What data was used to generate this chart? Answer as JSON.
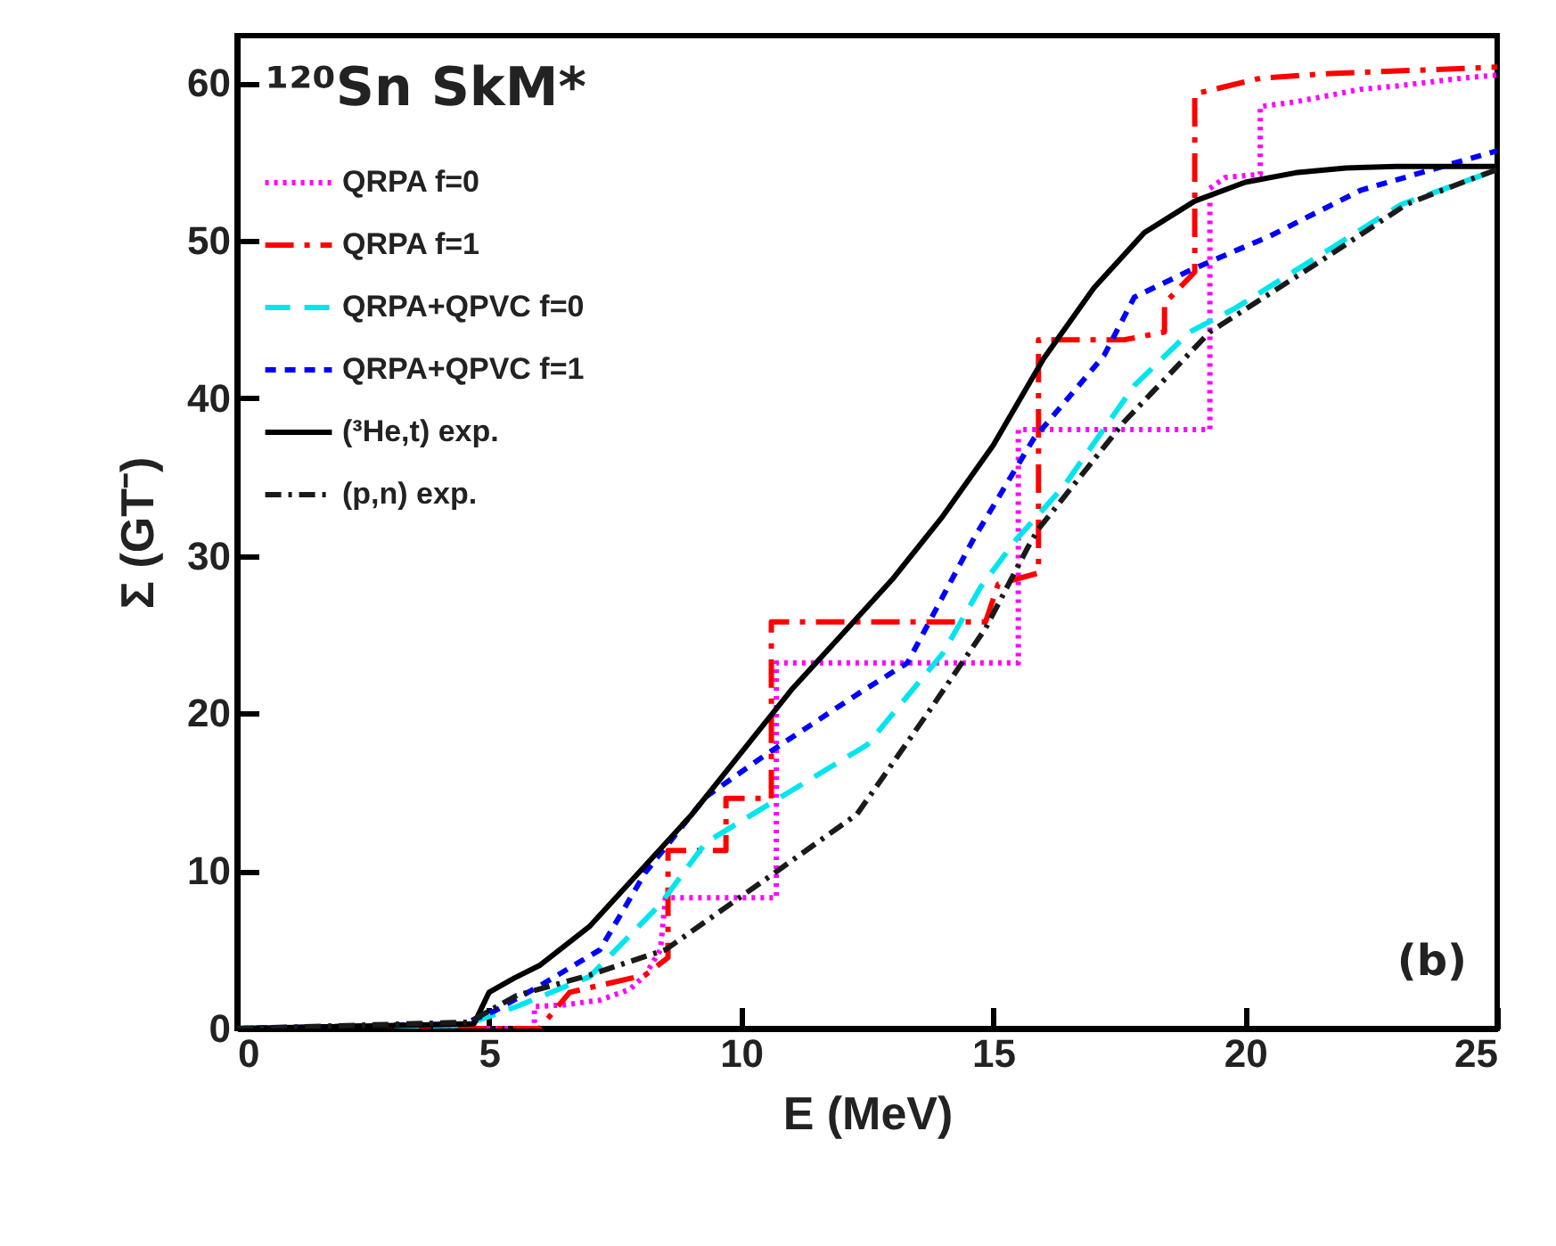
{
  "chart_data": {
    "type": "line",
    "xlabel": "E (MeV)",
    "ylabel": "Σ (GT⁻)",
    "xlim": [
      0,
      25
    ],
    "ylim": [
      0,
      63
    ],
    "xticks": [
      0,
      5,
      10,
      15,
      20,
      25
    ],
    "yticks": [
      0,
      10,
      20,
      30,
      40,
      50,
      60
    ],
    "grid": false,
    "legend": "top left",
    "marker": "none",
    "annotations": [
      "¹²⁰Sn SkM*",
      "(b)"
    ],
    "series": [
      {
        "name": "QRPA f=0",
        "color": "#ff00ff",
        "line_style": "dotted",
        "x": [
          0,
          5.9,
          5.9,
          6.5,
          7.2,
          7.8,
          8.1,
          8.4,
          8.5,
          10.7,
          10.7,
          15.5,
          15.5,
          19.3,
          19.3,
          19.6,
          20.3,
          20.3,
          21,
          22.3,
          23,
          24.3,
          25
        ],
        "values": [
          0,
          0,
          1.4,
          1.5,
          1.8,
          2.5,
          3.4,
          5,
          8.3,
          8.3,
          23.2,
          23.2,
          38,
          38,
          53.3,
          54,
          54.2,
          58.5,
          58.8,
          59.6,
          59.8,
          60.3,
          60.5
        ]
      },
      {
        "name": "QRPA f=1",
        "color": "#ff0000",
        "line_style": "dashdot",
        "x": [
          0,
          6.0,
          6.6,
          8.1,
          8.55,
          8.55,
          9.7,
          9.7,
          10.6,
          10.6,
          14.85,
          15.1,
          15.9,
          15.9,
          17.6,
          18.4,
          18.4,
          19.0,
          19.0,
          20.3,
          21.7,
          25
        ],
        "values": [
          0,
          0,
          2.3,
          3.4,
          4.5,
          11.3,
          11.3,
          14.6,
          14.6,
          25.8,
          25.8,
          28.2,
          28.9,
          43.7,
          43.7,
          44.2,
          46,
          48,
          59.3,
          60.3,
          60.6,
          61
        ]
      },
      {
        "name": "QRPA+QPVC f=0",
        "color": "#00e5ee",
        "line_style": "dashed",
        "x": [
          0,
          4.5,
          5.55,
          7.0,
          8.4,
          9.3,
          12.5,
          14.0,
          14.75,
          15.45,
          16.4,
          17.8,
          18.9,
          19.8,
          21.7,
          23.1,
          24.4,
          25
        ],
        "values": [
          0,
          0.2,
          1.4,
          3.3,
          7.9,
          11.8,
          18,
          23.8,
          28,
          31,
          34.4,
          40.8,
          44.2,
          45.7,
          49.5,
          52.3,
          53.8,
          54.5
        ]
      },
      {
        "name": "QRPA+QPVC f=1",
        "color": "#0000ff",
        "line_style": "shortdash",
        "x": [
          0,
          4.5,
          5.1,
          6,
          7.2,
          8.1,
          9.3,
          10.5,
          12.3,
          13.3,
          14.6,
          15.8,
          17.2,
          17.8,
          18.9,
          20.5,
          22.3,
          25
        ],
        "values": [
          0,
          0.3,
          1.1,
          2.7,
          5,
          9.9,
          14.7,
          17.4,
          21.2,
          23.2,
          31,
          37.4,
          42.7,
          46.4,
          48.1,
          50.3,
          53.2,
          55.7
        ]
      },
      {
        "name": "(³He,t) exp.",
        "color": "#000000",
        "line_style": "solid",
        "x": [
          0,
          4.7,
          5.0,
          5.5,
          6,
          7,
          8,
          9,
          10,
          11,
          12,
          13,
          14,
          15,
          16,
          17,
          18,
          19,
          20,
          21,
          22,
          23,
          25
        ],
        "values": [
          0,
          0.3,
          2.3,
          3.2,
          4,
          6.5,
          10,
          13.5,
          17.5,
          21.5,
          25,
          28.5,
          32.5,
          37,
          42.5,
          47,
          50.5,
          52.5,
          53.7,
          54.3,
          54.6,
          54.7,
          54.7
        ]
      },
      {
        "name": "(p,n) exp.",
        "color": "#1a1a1a",
        "line_style": "dashdotfine",
        "x": [
          0,
          4.6,
          5.55,
          7.0,
          8.5,
          10.5,
          12.3,
          13.7,
          14.85,
          15.7,
          15.9,
          17.6,
          19.3,
          21.5,
          23.2,
          24.4,
          25
        ],
        "values": [
          0,
          0.4,
          2.1,
          3.4,
          5.0,
          9.5,
          13.6,
          20,
          25.4,
          30.6,
          31.7,
          38.5,
          44.2,
          48.7,
          52.3,
          53.8,
          54.5
        ]
      }
    ]
  }
}
